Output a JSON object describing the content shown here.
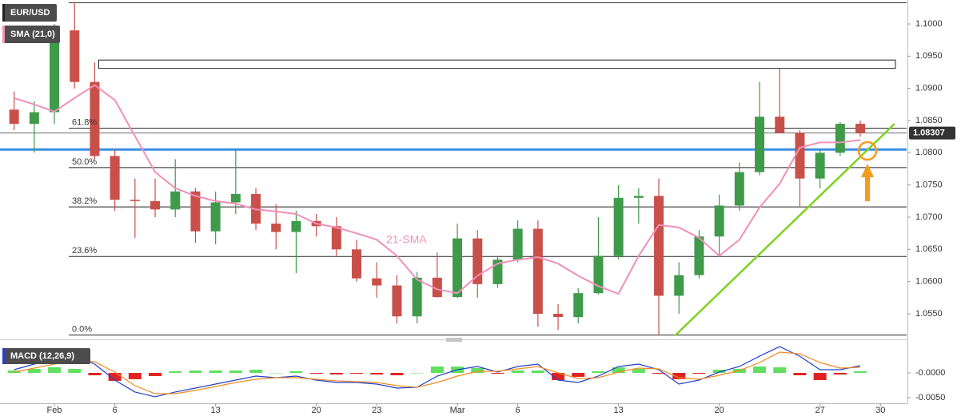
{
  "chart_data": [
    {
      "type": "candlestick",
      "name": "EUR/USD",
      "indicator": "SMA (21,0)",
      "annotation": "21-SMA",
      "x": [
        -2,
        -1,
        0,
        1,
        2,
        3,
        4,
        5,
        6,
        7,
        8,
        9,
        10,
        11,
        12,
        13,
        14,
        15,
        16,
        17,
        18,
        19,
        20,
        21,
        22,
        23,
        24,
        25,
        26,
        27,
        28,
        29,
        30,
        31,
        32,
        33,
        34,
        35,
        36,
        37,
        38,
        39,
        40
      ],
      "open": [
        1.0867,
        1.0845,
        1.0863,
        1.099,
        1.091,
        1.0795,
        1.0727,
        1.0725,
        1.0712,
        1.074,
        1.0678,
        1.0723,
        1.0736,
        1.069,
        1.0677,
        1.0694,
        1.0686,
        1.065,
        1.0605,
        1.0594,
        1.0546,
        1.0606,
        1.0576,
        1.0667,
        1.0596,
        1.0634,
        1.0682,
        1.055,
        1.0545,
        1.0582,
        1.064,
        1.073,
        1.0733,
        1.0578,
        1.061,
        1.067,
        1.0718,
        1.077,
        1.0856,
        1.0831,
        1.076,
        1.08,
        1.0845
      ],
      "high": [
        1.0895,
        1.088,
        1.1,
        1.1033,
        1.094,
        1.0805,
        1.076,
        1.076,
        1.079,
        1.0745,
        1.074,
        1.0805,
        1.0745,
        1.072,
        1.071,
        1.0705,
        1.07,
        1.0665,
        1.063,
        1.061,
        1.0615,
        1.0645,
        1.069,
        1.068,
        1.064,
        1.0695,
        1.0695,
        1.0565,
        1.059,
        1.07,
        1.075,
        1.0745,
        1.076,
        1.063,
        1.068,
        1.0735,
        1.0785,
        1.091,
        1.093,
        1.0835,
        1.0805,
        1.0848,
        1.085
      ],
      "low": [
        1.0835,
        1.08,
        1.0845,
        1.09,
        1.079,
        1.071,
        1.0668,
        1.07,
        1.07,
        1.066,
        1.0658,
        1.0705,
        1.068,
        1.065,
        1.0613,
        1.067,
        1.064,
        1.06,
        1.0575,
        1.0535,
        1.0535,
        1.0575,
        1.0575,
        1.0575,
        1.059,
        1.063,
        1.053,
        1.0525,
        1.0535,
        1.058,
        1.0635,
        1.069,
        1.0516,
        1.055,
        1.0605,
        1.064,
        1.071,
        1.0765,
        1.083,
        1.0715,
        1.0745,
        1.0795,
        1.0825
      ],
      "close": [
        1.0845,
        1.0863,
        1.099,
        1.091,
        1.0795,
        1.0727,
        1.0725,
        1.0712,
        1.074,
        1.0678,
        1.0723,
        1.0736,
        1.069,
        1.0677,
        1.0694,
        1.0686,
        1.065,
        1.0605,
        1.0594,
        1.0546,
        1.0606,
        1.0576,
        1.0667,
        1.0596,
        1.0634,
        1.0682,
        1.055,
        1.0545,
        1.0582,
        1.064,
        1.073,
        1.0733,
        1.0578,
        1.061,
        1.067,
        1.0718,
        1.077,
        1.0856,
        1.0831,
        1.076,
        1.08,
        1.0845,
        1.0831
      ],
      "up_color": "#3f9a4a",
      "down_color": "#c9504a",
      "sma": {
        "color": "#f090b8",
        "values": [
          1.0885,
          1.0875,
          1.0864,
          1.0885,
          1.0905,
          1.0882,
          1.0826,
          1.077,
          1.0745,
          1.0733,
          1.0725,
          1.0721,
          1.0712,
          1.0709,
          1.0705,
          1.069,
          1.0684,
          1.0675,
          1.0665,
          1.064,
          1.0603,
          1.0588,
          1.0582,
          1.0609,
          1.0628,
          1.0634,
          1.0638,
          1.0628,
          1.0609,
          1.0593,
          1.0581,
          1.064,
          1.0688,
          1.0684,
          1.0668,
          1.064,
          1.0665,
          1.0715,
          1.0752,
          1.0808,
          1.0816,
          1.0816,
          1.082
        ]
      },
      "levels": [
        {
          "value": 1.1033,
          "label": null
        },
        {
          "value": 1.0838,
          "label": "61.8%"
        },
        {
          "value": 1.0777,
          "label": "50.0%"
        },
        {
          "value": 1.0716,
          "label": "38.2%"
        },
        {
          "value": 1.0639,
          "label": "23.6%"
        },
        {
          "value": 1.0517,
          "label": "0.0%"
        }
      ],
      "resistance_box": {
        "x": 2.2,
        "top": 1.0944,
        "bottom": 1.0931
      },
      "support_line": {
        "value": 1.0805,
        "color": "#3b8fe3"
      },
      "trendline": {
        "x": [
          30.8,
          41.7
        ],
        "y": [
          1.0516,
          1.0845
        ],
        "color": "#7ed321"
      },
      "last_price": 1.08307,
      "xlim": [
        -2.7,
        42.3
      ],
      "ylim": [
        1.05165,
        1.10372
      ],
      "xticks": [
        {
          "value": 0,
          "label": "Feb"
        },
        {
          "value": 3,
          "label": "6"
        },
        {
          "value": 8,
          "label": "13"
        },
        {
          "value": 13,
          "label": "20"
        },
        {
          "value": 16,
          "label": "23"
        },
        {
          "value": 20,
          "label": "Mar"
        },
        {
          "value": 23,
          "label": "6"
        },
        {
          "value": 28,
          "label": "13"
        },
        {
          "value": 33,
          "label": "20"
        },
        {
          "value": 38,
          "label": "27"
        },
        {
          "value": 41,
          "label": "30"
        }
      ],
      "yticks": [
        {
          "value": 1.055,
          "label": "1.0550"
        },
        {
          "value": 1.06,
          "label": "1.0600"
        },
        {
          "value": 1.065,
          "label": "1.0650"
        },
        {
          "value": 1.07,
          "label": "1.0700"
        },
        {
          "value": 1.075,
          "label": "1.0750"
        },
        {
          "value": 1.08,
          "label": "1.0800"
        },
        {
          "value": 1.085,
          "label": "1.0850"
        },
        {
          "value": 1.09,
          "label": "1.0900"
        },
        {
          "value": 1.095,
          "label": "1.0950"
        },
        {
          "value": 1.1,
          "label": "1.1000"
        }
      ]
    },
    {
      "type": "macd",
      "name": "MACD (12,26,9)",
      "macd": {
        "color": "#2340d0",
        "values": [
          0.00064,
          0.00177,
          0.0029,
          0.00338,
          0.00177,
          -0.00145,
          -0.00386,
          -0.00483,
          -0.00386,
          -0.00306,
          -0.00225,
          -0.00145,
          -0.00064,
          -0.00097,
          -0.00064,
          -0.00145,
          -0.00193,
          -0.00193,
          -0.00225,
          -0.00306,
          -0.0029,
          -0.00064,
          0.00064,
          0.00129,
          0.00016,
          0.00129,
          0.00177,
          -0.00145,
          -0.00193,
          -0.00064,
          0.00129,
          0.00177,
          0.00064,
          -0.00225,
          -0.00145,
          0.00016,
          0.00129,
          0.00338,
          0.00531,
          0.00338,
          0.00064,
          0.00064,
          0.00145
        ]
      },
      "signal": {
        "color": "#f08a24",
        "values": [
          0.00016,
          0.00097,
          0.00177,
          0.00258,
          0.00225,
          0.00016,
          -0.00258,
          -0.00419,
          -0.00419,
          -0.00354,
          -0.00274,
          -0.00193,
          -0.00129,
          -0.00097,
          -0.00097,
          -0.00129,
          -0.00161,
          -0.00177,
          -0.00193,
          -0.00258,
          -0.0029,
          -0.00193,
          -0.00064,
          0.00032,
          0.00032,
          0.00081,
          0.00129,
          0,
          -0.00113,
          -0.00097,
          0.00016,
          0.00097,
          0.00081,
          -0.00097,
          -0.00129,
          -0.00048,
          0.00048,
          0.00209,
          0.00419,
          0.00386,
          0.00209,
          0.00097,
          0.00113
        ]
      },
      "histogram": {
        "up_color": "#5fe05f",
        "down_color": "#e02222",
        "values": [
          0.00048,
          0.0008,
          0.00113,
          0.0008,
          -0.00048,
          -0.00161,
          -0.00128,
          -0.00064,
          0.00033,
          0.00048,
          0.00049,
          0.00048,
          0.00065,
          0,
          0.00033,
          -0.00016,
          -0.00032,
          -0.00016,
          -0.00032,
          -0.00048,
          0,
          0.00129,
          0.00128,
          0.00097,
          -0.00016,
          0.00048,
          0.00048,
          -0.00145,
          -0.0008,
          0.00033,
          0.00113,
          0.0008,
          -0.00017,
          -0.00128,
          -0.00016,
          0.00064,
          0.00081,
          0.00129,
          0.00112,
          -0.00048,
          -0.00145,
          -0.00033,
          0.00032
        ]
      },
      "ylim": [
        -0.00613,
        0.00597
      ],
      "yticks": [
        {
          "value": 0,
          "label": "-0.0000"
        },
        {
          "value": -0.005,
          "label": "-0.0050"
        }
      ]
    }
  ]
}
